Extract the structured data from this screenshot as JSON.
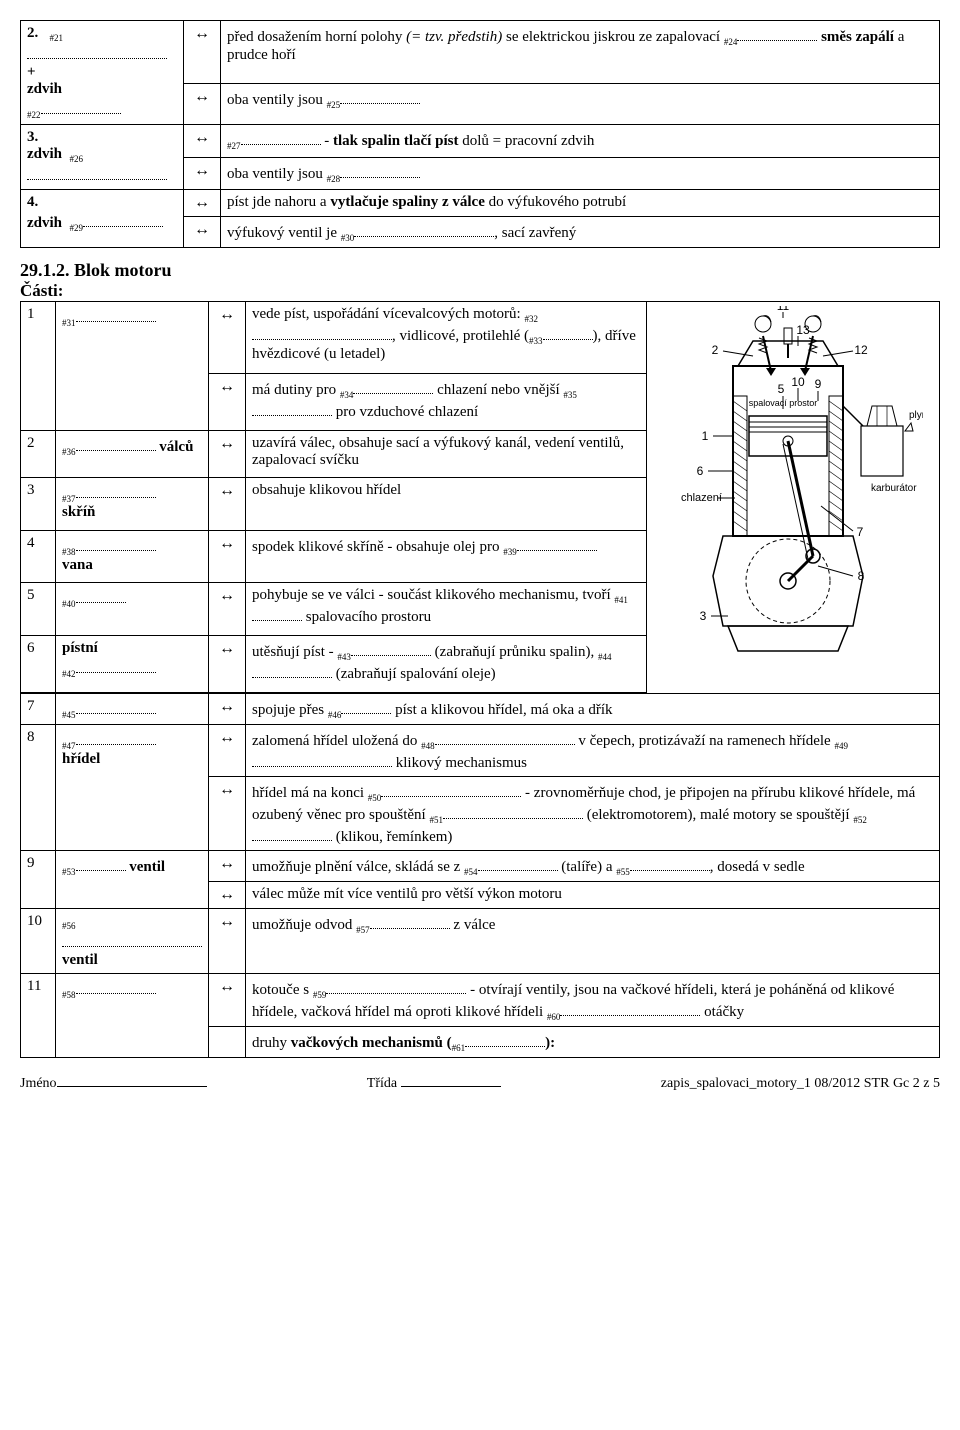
{
  "top_table": {
    "rows": [
      {
        "label_top": "2.",
        "label_bot": "zdvih",
        "n1": "#21",
        "plus": "+",
        "n2": "#22",
        "cells": [
          "před dosažením horní polohy <span class='italic'>(= tzv. předstih)</span> se elektrickou jiskrou ze zapalovací <span class='num'>#24</span><span class='blank'></span> <span class='bold'>směs zapálí</span> a prudce hoří",
          "oba ventily jsou <span class='num'>#25</span><span class='blank'></span>"
        ]
      },
      {
        "label_top": "3.",
        "label_bot": "zdvih",
        "n1": "#26",
        "cells": [
          "<span class='num'>#27</span><span class='blank'></span> - <span class='bold'>tlak spalin tlačí píst</span> dolů = pracovní zdvih",
          "oba ventily jsou <span class='num'>#28</span><span class='blank'></span>"
        ]
      },
      {
        "label_top": "4.",
        "label_bot": "zdvih",
        "n1": "#29",
        "cells": [
          "píst jde nahoru a <span class='bold'>vytlačuje spaliny z válce</span> do výfukového potrubí",
          "výfukový ventil je <span class='num'>#30</span><span class='blank blank-wide'></span>, sací zavřený"
        ]
      }
    ]
  },
  "section_title": "29.1.2. Blok motoru",
  "parts_label": "Části:",
  "parts": [
    {
      "n": "1",
      "left": "<span class='num'>#31</span><span class='blank'></span>",
      "rows": [
        "vede píst, uspořádání vícevalcových motorů: <span class='num'>#32</span><span class='blank blank-wide'></span>, vidlicové, protilehlé (<span class='num'>#33</span><span class='blank blank-narrow'></span>), dříve hvězdicové (u letadel)",
        "má dutiny pro <span class='num'>#34</span><span class='blank'></span> chlazení nebo vnější <span class='num'>#35</span><span class='blank'></span> pro vzduchové chlazení"
      ]
    },
    {
      "n": "2",
      "left": "<span class='num'>#36</span><span class='blank'></span> <span class='bold'>válců</span>",
      "rows": [
        "uzavírá válec, obsahuje sací a výfukový kanál, vedení ventilů, zapalovací svíčku"
      ]
    },
    {
      "n": "3",
      "left": "<span class='num'>#37</span><span class='blank'></span><br><span class='bold'>skříň</span>",
      "rows": [
        "obsahuje klikovou hřídel"
      ]
    },
    {
      "n": "4",
      "left": "<span class='num'>#38</span><span class='blank'></span><br><span class='bold'>vana</span>",
      "rows": [
        "spodek klikové skříně - obsahuje olej pro <span class='num'>#39</span><span class='blank'></span>"
      ]
    },
    {
      "n": "5",
      "left": "<span class='num'>#40</span><span class='blank blank-narrow'></span>",
      "rows": [
        "pohybuje se ve válci - součást klikového mechanismu, tvoří <span class='num'>#41</span><span class='blank blank-narrow'></span> spalovacího prostoru"
      ]
    },
    {
      "n": "6",
      "left": "<span class='bold'>pístní</span><br><span class='num'>#42</span><span class='blank'></span>",
      "rows": [
        "utěsňují píst - <span class='num'>#43</span><span class='blank'></span> (zabraňují průniku spalin), <span class='num'>#44</span><span class='blank'></span> (zabraňují spalování oleje)"
      ]
    },
    {
      "n": "7",
      "left": "<span class='num'>#45</span><span class='blank'></span>",
      "rows": [
        "spojuje přes <span class='num'>#46</span><span class='blank blank-narrow'></span> píst a klikovou hřídel, má oka a dřík"
      ]
    },
    {
      "n": "8",
      "left": "<span class='num'>#47</span><span class='blank'></span><br><span class='bold'>hřídel</span>",
      "rows": [
        "zalomená hřídel uložená do <span class='num'>#48</span><span class='blank blank-wide'></span> v čepech, protizávaží na ramenech hřídele <span class='num'>#49</span><span class='blank blank-wide'></span> klikový mechanismus",
        "hřídel má na konci <span class='num'>#50</span><span class='blank blank-wide'></span> - zrovnoměrňuje chod, je připojen na přírubu klikové hřídele, má ozubený věnec pro spouštění <span class='num'>#51</span><span class='blank blank-wide'></span> (elektromotorem), malé motory se spouštějí <span class='num'>#52</span><span class='blank'></span> (klikou, řemínkem)"
      ]
    },
    {
      "n": "9",
      "left": "<span class='num'>#53</span><span class='blank blank-narrow'></span> <span class='bold'>ventil</span>",
      "rows": [
        "umožňuje plnění válce, skládá se z <span class='num'>#54</span><span class='blank'></span> (talíře) a <span class='num'>#55</span><span class='blank'></span>, dosedá v sedle",
        "válec může mít více ventilů pro větší výkon motoru"
      ]
    },
    {
      "n": "10",
      "left": "<span class='num'>#56</span><span class='blank blank-wide'></span><br><span class='bold'>ventil</span>",
      "rows": [
        "umožňuje odvod <span class='num'>#57</span><span class='blank'></span> z válce"
      ]
    },
    {
      "n": "11",
      "left": "<span class='num'>#58</span><span class='blank'></span>",
      "rows": [
        "kotouče s <span class='num'>#59</span><span class='blank blank-wide'></span> - otvírají ventily, jsou na vačkové hřídeli, která je poháněná od klikové hřídele, vačková hřídel má oproti klikové hřídeli <span class='num'>#60</span><span class='blank blank-wide'></span> otáčky",
        "druhy <span class='bold'>vačkových mechanismů (</span><span class='num'>#61</span><span class='blank'></span><span class='bold'>):</span>"
      ]
    }
  ],
  "diagram_labels": {
    "spalovaci": "spalovací prostor",
    "plyn": "plyn",
    "karburator": "karburátor",
    "chlazeni": "chlazení",
    "n1": "1",
    "n2": "2",
    "n3": "3",
    "n5": "5",
    "n6": "6",
    "n7": "7",
    "n8": "8",
    "n9": "9",
    "n10": "10",
    "n11": "11",
    "n12": "12",
    "n13": "13"
  },
  "footer": {
    "jmeno": "Jméno",
    "trida": "Třída",
    "ref": "zapis_spalovaci_motory_1 08/2012 STR Gc 2 z 5"
  }
}
